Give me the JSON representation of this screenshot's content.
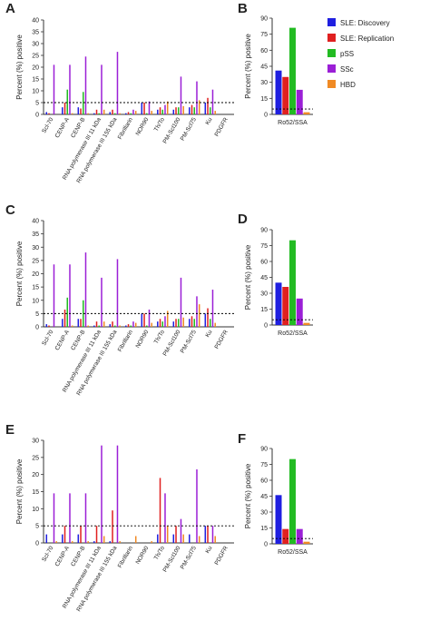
{
  "legend": [
    {
      "name": "SLE: Discovery",
      "color": "#1f1fe0"
    },
    {
      "name": "SLE: Replication",
      "color": "#e02020"
    },
    {
      "name": "pSS",
      "color": "#22bb22"
    },
    {
      "name": "SSc",
      "color": "#9b1fd6"
    },
    {
      "name": "HBD",
      "color": "#f08a24"
    }
  ],
  "threshold": 5,
  "chart_data": [
    {
      "panel": "A",
      "type": "bar",
      "ylabel": "Percent (%) positive",
      "ylim": [
        0,
        40
      ],
      "yticks": [
        0,
        5,
        10,
        15,
        20,
        25,
        30,
        35,
        40
      ],
      "categories": [
        "Scl-70",
        "CENP-A",
        "CENP-B",
        "RNA polymerase III 11 kDa",
        "RNA polymerase III 155 kDa",
        "Fibrillarin",
        "NOR90",
        "Th/To",
        "PM-Scl100",
        "PM-Scl75",
        "Ku",
        "PDGFR"
      ],
      "series": [
        {
          "name": "SLE: Discovery",
          "values": [
            1,
            3,
            3,
            0.5,
            1,
            0.5,
            5,
            2,
            2,
            3,
            5,
            0
          ]
        },
        {
          "name": "SLE: Replication",
          "values": [
            0.5,
            5,
            2.5,
            2,
            2,
            1,
            5,
            3,
            3,
            4,
            7,
            0
          ]
        },
        {
          "name": "pSS",
          "values": [
            0,
            10.5,
            9.5,
            0.5,
            0.5,
            0.5,
            0.5,
            2,
            3,
            3,
            3,
            0
          ]
        },
        {
          "name": "SSc",
          "values": [
            21,
            21,
            24.5,
            21,
            26.5,
            2,
            5.5,
            4,
            16,
            14,
            10.5,
            0
          ]
        },
        {
          "name": "HBD",
          "values": [
            0,
            0.5,
            0.5,
            2,
            0.5,
            1.5,
            1.5,
            5.5,
            3.5,
            6,
            1.5,
            0
          ]
        }
      ]
    },
    {
      "panel": "B",
      "type": "bar",
      "ylabel": "Percent (%) positive",
      "ylim": [
        0,
        90
      ],
      "yticks": [
        0,
        15,
        30,
        45,
        60,
        75,
        90
      ],
      "categories": [
        "Ro52/SSA"
      ],
      "series": [
        {
          "name": "SLE: Discovery",
          "values": [
            41
          ]
        },
        {
          "name": "SLE: Replication",
          "values": [
            35
          ]
        },
        {
          "name": "pSS",
          "values": [
            81
          ]
        },
        {
          "name": "SSc",
          "values": [
            23
          ]
        },
        {
          "name": "HBD",
          "values": [
            2
          ]
        }
      ]
    },
    {
      "panel": "C",
      "type": "bar",
      "ylabel": "Percent (%) positive",
      "ylim": [
        0,
        40
      ],
      "yticks": [
        0,
        5,
        10,
        15,
        20,
        25,
        30,
        35,
        40
      ],
      "categories": [
        "Scl-70",
        "CENP-A",
        "CENP-B",
        "RNA polymerase III 11 kDa",
        "RNA polymerase III 155 kDa",
        "Fibrillarin",
        "NOR90",
        "Th/To",
        "PM-Scl100",
        "PM-Scl75",
        "Ku",
        "PDGFR"
      ],
      "series": [
        {
          "name": "SLE: Discovery",
          "values": [
            1,
            3,
            3,
            0.5,
            1,
            0.5,
            5,
            2,
            2,
            3,
            5,
            0
          ]
        },
        {
          "name": "SLE: Replication",
          "values": [
            0.5,
            6.5,
            3,
            2,
            2,
            1,
            5,
            3,
            3,
            4,
            7,
            0
          ]
        },
        {
          "name": "pSS",
          "values": [
            0,
            11,
            10,
            0.5,
            0.5,
            0.5,
            0.5,
            2,
            3,
            3,
            3,
            0
          ]
        },
        {
          "name": "SSc",
          "values": [
            23.5,
            23.5,
            28,
            18.5,
            25.5,
            2,
            6.5,
            4,
            18.5,
            11.5,
            14,
            0
          ]
        },
        {
          "name": "HBD",
          "values": [
            0,
            0.5,
            0.5,
            2,
            0.5,
            1.5,
            1.5,
            6,
            3.5,
            8.5,
            1.5,
            0
          ]
        }
      ]
    },
    {
      "panel": "D",
      "type": "bar",
      "ylabel": "Percent (%) positive",
      "ylim": [
        0,
        90
      ],
      "yticks": [
        0,
        15,
        30,
        45,
        60,
        75,
        90
      ],
      "categories": [
        "Ro52/SSA"
      ],
      "series": [
        {
          "name": "SLE: Discovery",
          "values": [
            40
          ]
        },
        {
          "name": "SLE: Replication",
          "values": [
            36
          ]
        },
        {
          "name": "pSS",
          "values": [
            80
          ]
        },
        {
          "name": "SSc",
          "values": [
            25
          ]
        },
        {
          "name": "HBD",
          "values": [
            2
          ]
        }
      ]
    },
    {
      "panel": "E",
      "type": "bar",
      "ylabel": "Percent (%) positive",
      "ylim": [
        0,
        30
      ],
      "yticks": [
        0,
        5,
        10,
        15,
        20,
        25,
        30
      ],
      "categories": [
        "Scl-70",
        "CENP-A",
        "CENP-B",
        "RNA polymerase III 11 kDa",
        "RNA polymerase III 155 kDa",
        "Fibrillarin",
        "NOR90",
        "Th/To",
        "PM-Scl100",
        "PM-Scl75",
        "Ku",
        "PDGFR"
      ],
      "series": [
        {
          "name": "SLE: Discovery",
          "values": [
            2.5,
            2.5,
            2.5,
            0.5,
            0.5,
            0,
            0,
            2.5,
            2.5,
            2.5,
            5,
            0
          ]
        },
        {
          "name": "SLE: Replication",
          "values": [
            0,
            5,
            5,
            5,
            9.5,
            0,
            0,
            19,
            5,
            0,
            5,
            0
          ]
        },
        {
          "name": "pSS",
          "values": [
            0,
            0,
            0,
            0,
            0,
            0,
            0,
            0,
            0,
            0,
            0,
            0
          ]
        },
        {
          "name": "SSc",
          "values": [
            14.5,
            14.5,
            14.5,
            28.5,
            28.5,
            0,
            0,
            14.5,
            7,
            21.5,
            5,
            0
          ]
        },
        {
          "name": "HBD",
          "values": [
            0.5,
            0.5,
            0.5,
            2,
            0.5,
            2,
            0.5,
            5,
            2.5,
            2,
            2,
            0
          ]
        }
      ]
    },
    {
      "panel": "F",
      "type": "bar",
      "ylabel": "Percent (%) positive",
      "ylim": [
        0,
        90
      ],
      "yticks": [
        0,
        15,
        30,
        45,
        60,
        75,
        90
      ],
      "categories": [
        "Ro52/SSA"
      ],
      "series": [
        {
          "name": "SLE: Discovery",
          "values": [
            46
          ]
        },
        {
          "name": "SLE: Replication",
          "values": [
            14
          ]
        },
        {
          "name": "pSS",
          "values": [
            80
          ]
        },
        {
          "name": "SSc",
          "values": [
            14
          ]
        },
        {
          "name": "HBD",
          "values": [
            2
          ]
        }
      ]
    }
  ]
}
